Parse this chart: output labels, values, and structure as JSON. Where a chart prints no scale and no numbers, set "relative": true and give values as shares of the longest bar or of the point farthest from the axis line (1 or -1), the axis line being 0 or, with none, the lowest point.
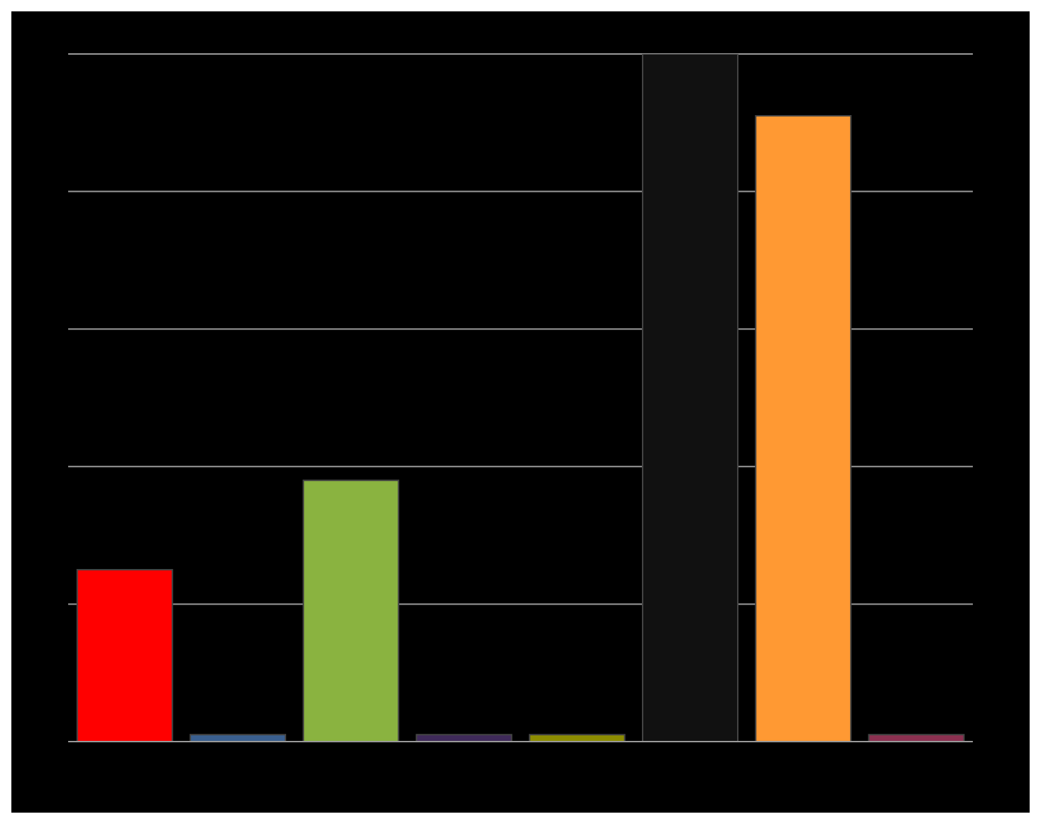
{
  "chart_data": {
    "type": "bar",
    "relative": true,
    "grid": "y",
    "categories": [
      null,
      null,
      null,
      null,
      null,
      null,
      null,
      null
    ],
    "values": [
      0.25,
      0.01,
      0.38,
      0.01,
      0.01,
      1,
      0.91,
      0.01
    ],
    "colors": [
      "#ff0000",
      "#3a5f8f",
      "#8ab340",
      "#3f2a5a",
      "#8c8c00",
      "#111111",
      "#ff9933",
      "#8b3050"
    ]
  }
}
